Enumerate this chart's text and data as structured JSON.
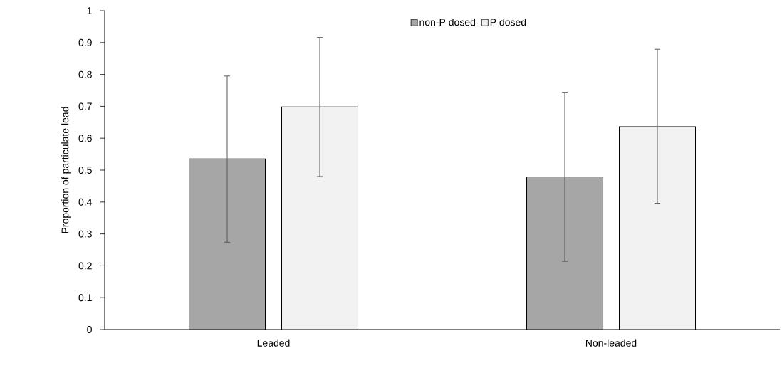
{
  "chart_data": {
    "type": "bar",
    "ylabel": "Proportion of particulate lead",
    "categories": [
      "Leaded",
      "Non-leaded"
    ],
    "series": [
      {
        "name": "non-P dosed",
        "color": "#a6a6a6",
        "values": [
          0.535,
          0.479
        ],
        "errors": [
          [
            0.274,
            0.795
          ],
          [
            0.214,
            0.744
          ]
        ]
      },
      {
        "name": "P dosed",
        "color": "#f2f2f2",
        "values": [
          0.698,
          0.636
        ],
        "errors": [
          [
            0.48,
            0.916
          ],
          [
            0.396,
            0.879
          ]
        ]
      }
    ],
    "ylim": [
      0,
      1
    ],
    "yticks": [
      0,
      0.1,
      0.2,
      0.3,
      0.4,
      0.5,
      0.6,
      0.7,
      0.8,
      0.9,
      1
    ],
    "grid": false,
    "legend": "top"
  }
}
